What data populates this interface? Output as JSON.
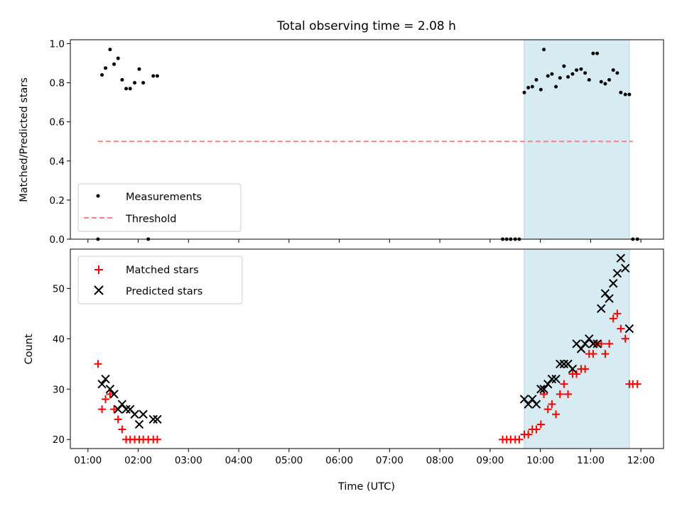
{
  "chart_data": {
    "title": "Total observing time = 2.08 h",
    "xlabel": "Time (UTC)",
    "x_tick_labels": [
      "01:00",
      "02:00",
      "03:00",
      "04:00",
      "05:00",
      "06:00",
      "07:00",
      "08:00",
      "09:00",
      "10:00",
      "11:00",
      "12:00"
    ],
    "x_tick_hours": [
      1,
      2,
      3,
      4,
      5,
      6,
      7,
      8,
      9,
      10,
      11,
      12
    ],
    "xlim": [
      0.65,
      12.45
    ],
    "shaded_span_hours": [
      9.68,
      11.77
    ],
    "shade_color": "#add8e6",
    "panels": [
      {
        "type": "scatter",
        "ylabel": "Matched/Predicted stars",
        "ylim": [
          0,
          1.02
        ],
        "y_ticks": [
          "0.0",
          "0.2",
          "0.4",
          "0.6",
          "0.8",
          "1.0"
        ],
        "y_tick_values": [
          0,
          0.2,
          0.4,
          0.6,
          0.8,
          1.0
        ],
        "legend_position": "lower-left",
        "series": [
          {
            "name": "Measurements",
            "marker": "dot",
            "color": "#000000",
            "x": [
              1.2,
              1.28,
              1.35,
              1.44,
              1.52,
              1.6,
              1.68,
              1.76,
              1.84,
              1.93,
              2.02,
              2.1,
              2.2,
              2.3,
              2.38,
              9.25,
              9.33,
              9.41,
              9.5,
              9.58,
              9.68,
              9.76,
              9.84,
              9.92,
              10.01,
              10.07,
              10.15,
              10.23,
              10.31,
              10.39,
              10.47,
              10.55,
              10.64,
              10.72,
              10.81,
              10.89,
              10.97,
              11.05,
              11.13,
              11.21,
              11.29,
              11.37,
              11.45,
              11.53,
              11.6,
              11.69,
              11.77,
              11.84,
              11.93
            ],
            "y": [
              0.0,
              0.84,
              0.875,
              0.97,
              0.895,
              0.925,
              0.815,
              0.77,
              0.77,
              0.8,
              0.87,
              0.8,
              0.0,
              0.835,
              0.835,
              0.0,
              0.0,
              0.0,
              0.0,
              0.0,
              0.75,
              0.775,
              0.78,
              0.815,
              0.765,
              0.97,
              0.835,
              0.845,
              0.78,
              0.825,
              0.885,
              0.83,
              0.845,
              0.865,
              0.87,
              0.85,
              0.815,
              0.95,
              0.95,
              0.805,
              0.795,
              0.815,
              0.865,
              0.85,
              0.75,
              0.74,
              0.74,
              0.0,
              0.0
            ]
          },
          {
            "name": "Threshold",
            "marker": "dashed-line",
            "color": "#ff7f7f",
            "x": [
              1.2,
              11.84
            ],
            "y": [
              0.5,
              0.5
            ]
          }
        ]
      },
      {
        "type": "scatter",
        "ylabel": "Count",
        "ylim": [
          18.2,
          57.8
        ],
        "y_ticks": [
          "20",
          "30",
          "40",
          "50"
        ],
        "y_tick_values": [
          20,
          30,
          40,
          50
        ],
        "legend_position": "top-left",
        "series": [
          {
            "name": "Matched stars",
            "marker": "plus",
            "color": "#ff0000",
            "x": [
              1.2,
              1.28,
              1.35,
              1.44,
              1.52,
              1.6,
              1.68,
              1.76,
              1.84,
              1.93,
              2.02,
              2.1,
              2.2,
              2.3,
              2.38,
              9.25,
              9.33,
              9.41,
              9.5,
              9.58,
              9.68,
              9.76,
              9.84,
              9.92,
              10.01,
              10.07,
              10.15,
              10.23,
              10.31,
              10.39,
              10.47,
              10.55,
              10.64,
              10.72,
              10.81,
              10.89,
              10.97,
              11.05,
              11.13,
              11.21,
              11.29,
              11.37,
              11.45,
              11.53,
              11.6,
              11.69,
              11.77,
              11.84,
              11.93
            ],
            "y": [
              35,
              26,
              28,
              29,
              26,
              24,
              22,
              20,
              20,
              20,
              20,
              20,
              20,
              20,
              20,
              20,
              20,
              20,
              20,
              20,
              21,
              21,
              22,
              22,
              23,
              29,
              26,
              27,
              25,
              29,
              31,
              29,
              33,
              33,
              34,
              34,
              37,
              37,
              39,
              39,
              37,
              39,
              44,
              45,
              42,
              40,
              31,
              31,
              31
            ]
          },
          {
            "name": "Predicted stars",
            "marker": "x",
            "color": "#000000",
            "x": [
              1.28,
              1.35,
              1.44,
              1.52,
              1.6,
              1.68,
              1.76,
              1.84,
              1.93,
              2.02,
              2.1,
              2.3,
              2.38,
              9.68,
              9.76,
              9.84,
              9.92,
              10.01,
              10.07,
              10.15,
              10.23,
              10.31,
              10.39,
              10.47,
              10.55,
              10.64,
              10.72,
              10.81,
              10.89,
              10.97,
              11.05,
              11.13,
              11.21,
              11.29,
              11.37,
              11.45,
              11.53,
              11.6,
              11.69,
              11.77
            ],
            "y": [
              31,
              32,
              30,
              29,
              26,
              27,
              26,
              26,
              25,
              23,
              25,
              24,
              24,
              28,
              27,
              28,
              27,
              30,
              30,
              31,
              32,
              32,
              35,
              35,
              35,
              34,
              39,
              38,
              39,
              40,
              39,
              39,
              46,
              49,
              48,
              51,
              53,
              56,
              54,
              42
            ]
          }
        ]
      }
    ]
  }
}
